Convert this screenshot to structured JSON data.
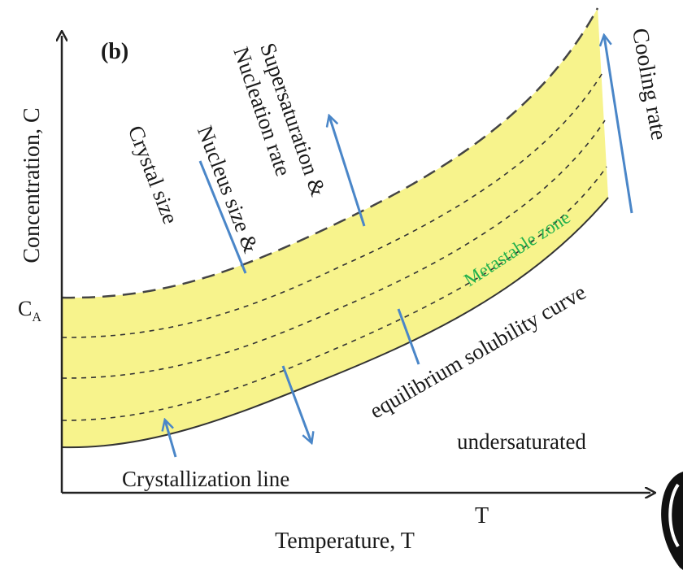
{
  "panel_label": "(b)",
  "y_axis_title": "Concentration, C",
  "x_axis_title": "Temperature, T",
  "y_tick_label": "C",
  "y_tick_subscript": "A",
  "x_tick_label": "T",
  "labels": {
    "nucleus_line1": "Nucleus size &",
    "nucleus_line2": "Crystal size",
    "super_line1": "Supersaturation &",
    "super_line2": "Nucleation rate",
    "cooling": "Cooling rate",
    "metastable": "Metastable zone",
    "solubility": "equilibrium solubility curve",
    "undersaturated": "undersaturated",
    "crystallization": "Crystallization line"
  },
  "colors": {
    "zone_fill": "#f7f38c",
    "arrow": "#4a86c8",
    "metastable_text": "#22b14c",
    "axis": "#222222"
  }
}
